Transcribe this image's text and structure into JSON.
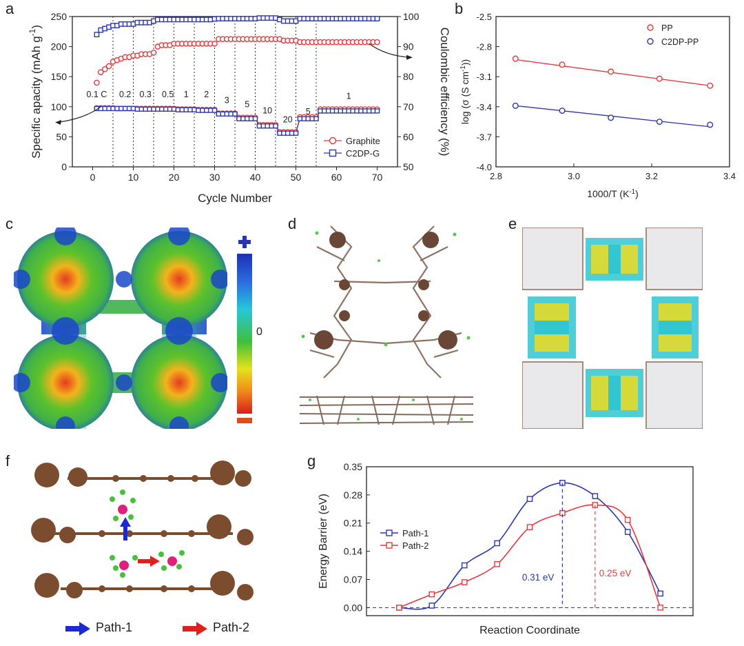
{
  "panels": {
    "a": "a",
    "b": "b",
    "c": "c",
    "d": "d",
    "e": "e",
    "f": "f",
    "g": "g"
  },
  "chart_data": [
    {
      "id": "a",
      "type": "scatter",
      "title": "",
      "xlabel": "Cycle Number",
      "ylabel": "Specific apacity (mAh g-1)",
      "ylabel_parts": [
        "Specific apacity (mAh g",
        "-1",
        ")"
      ],
      "y2label": "Coulombic efficiency (%)",
      "xlim": [
        -5,
        75
      ],
      "ylim": [
        0,
        250
      ],
      "y2lim": [
        50,
        100
      ],
      "xticks": [
        0,
        10,
        20,
        30,
        40,
        50,
        60,
        70
      ],
      "yticks": [
        0,
        50,
        100,
        150,
        200,
        250
      ],
      "y2ticks": [
        50,
        60,
        70,
        80,
        90,
        100
      ],
      "rate_labels": [
        {
          "x": 1,
          "text": "0.1 C"
        },
        {
          "x": 8,
          "text": "0.2"
        },
        {
          "x": 13,
          "text": "0.3"
        },
        {
          "x": 18.5,
          "text": "0.5"
        },
        {
          "x": 23,
          "text": "1"
        },
        {
          "x": 28,
          "text": "2"
        },
        {
          "x": 33,
          "text": "3"
        },
        {
          "x": 38,
          "text": "5"
        },
        {
          "x": 43,
          "text": "10"
        },
        {
          "x": 48,
          "text": "20"
        },
        {
          "x": 53,
          "text": "5"
        },
        {
          "x": 63,
          "text": "1"
        }
      ],
      "rate_label_y": [
        116,
        116,
        116,
        116,
        116,
        116,
        106,
        99,
        89,
        74,
        87,
        113
      ],
      "dividers_x": [
        5,
        10,
        15,
        20,
        25,
        30,
        35,
        40,
        45,
        50,
        55
      ],
      "series": [
        {
          "name": "Graphite",
          "axis": "left",
          "color": "#e8373a",
          "marker": "circle",
          "segments": [
            {
              "from": 1,
              "to": 5,
              "value": 98
            },
            {
              "from": 6,
              "to": 10,
              "value": 97
            },
            {
              "from": 11,
              "to": 15,
              "value": 97
            },
            {
              "from": 16,
              "to": 20,
              "value": 97
            },
            {
              "from": 21,
              "to": 25,
              "value": 96
            },
            {
              "from": 26,
              "to": 30,
              "value": 95
            },
            {
              "from": 31,
              "to": 35,
              "value": 89
            },
            {
              "from": 36,
              "to": 40,
              "value": 82
            },
            {
              "from": 41,
              "to": 45,
              "value": 70
            },
            {
              "from": 46,
              "to": 50,
              "value": 58
            },
            {
              "from": 51,
              "to": 55,
              "value": 83
            },
            {
              "from": 56,
              "to": 70,
              "value": 96
            }
          ]
        },
        {
          "name": "C2DP-G",
          "axis": "left",
          "color": "#2a35b0",
          "marker": "square",
          "segments": [
            {
              "from": 1,
              "to": 5,
              "value": 97
            },
            {
              "from": 6,
              "to": 10,
              "value": 97
            },
            {
              "from": 11,
              "to": 15,
              "value": 96
            },
            {
              "from": 16,
              "to": 20,
              "value": 96
            },
            {
              "from": 21,
              "to": 25,
              "value": 95
            },
            {
              "from": 26,
              "to": 30,
              "value": 94
            },
            {
              "from": 31,
              "to": 35,
              "value": 88
            },
            {
              "from": 36,
              "to": 40,
              "value": 80
            },
            {
              "from": 41,
              "to": 45,
              "value": 68
            },
            {
              "from": 46,
              "to": 50,
              "value": 56
            },
            {
              "from": 51,
              "to": 55,
              "value": 80
            },
            {
              "from": 56,
              "to": 70,
              "value": 93
            }
          ]
        },
        {
          "name": "Graphite CE",
          "axis": "right",
          "color": "#e8373a",
          "marker": "circle",
          "legend": false,
          "x": [
            1,
            2,
            3,
            4,
            5,
            6,
            7,
            8,
            9,
            10,
            11,
            12,
            13,
            14,
            15,
            16,
            17,
            18,
            19,
            20,
            21,
            22,
            23,
            24,
            25,
            26,
            27,
            28,
            29,
            30,
            31,
            32,
            33,
            34,
            35,
            36,
            37,
            38,
            39,
            40,
            41,
            42,
            43,
            44,
            45,
            46,
            47,
            48,
            49,
            50,
            51,
            52,
            53,
            54,
            55,
            56,
            57,
            58,
            59,
            60,
            61,
            62,
            63,
            64,
            65,
            66,
            67,
            68,
            69,
            70
          ],
          "y": [
            78,
            81.5,
            82.5,
            83.5,
            85,
            85.5,
            86,
            86.5,
            86.5,
            87,
            87,
            87.5,
            87.5,
            87.5,
            88,
            90,
            90.5,
            90.5,
            90.5,
            91,
            91,
            91,
            91,
            91,
            91,
            91,
            91,
            91,
            91,
            91,
            92.5,
            92.5,
            92.5,
            92.5,
            92.5,
            92.5,
            92.5,
            92.5,
            92.5,
            92.5,
            92.5,
            92.5,
            92.5,
            92.5,
            92.5,
            92.5,
            92,
            92,
            92,
            92,
            91.5,
            91.5,
            91.5,
            91.5,
            91.5,
            91.5,
            91.5,
            91.5,
            91.5,
            91.5,
            91.5,
            91.5,
            91.5,
            91.5,
            91.5,
            91.5,
            91.5,
            91.5,
            91.5,
            91.5
          ]
        },
        {
          "name": "C2DP-G CE",
          "axis": "right",
          "color": "#2a35b0",
          "marker": "square",
          "legend": false,
          "x": [
            1,
            2,
            3,
            4,
            5,
            6,
            7,
            8,
            9,
            10,
            11,
            12,
            13,
            14,
            15,
            16,
            17,
            18,
            19,
            20,
            21,
            22,
            23,
            24,
            25,
            26,
            27,
            28,
            29,
            30,
            31,
            32,
            33,
            34,
            35,
            36,
            37,
            38,
            39,
            40,
            41,
            42,
            43,
            44,
            45,
            46,
            47,
            48,
            49,
            50,
            51,
            52,
            53,
            54,
            55,
            56,
            57,
            58,
            59,
            60,
            61,
            62,
            63,
            64,
            65,
            66,
            67,
            68,
            69,
            70
          ],
          "y": [
            94,
            95.5,
            96,
            96.5,
            97,
            97,
            97.5,
            97.5,
            97.5,
            97.5,
            98,
            98,
            98,
            98,
            98.5,
            99,
            99,
            99,
            99,
            99,
            99,
            99,
            99,
            99,
            99,
            99,
            99,
            99,
            99,
            99.2,
            99.3,
            99.3,
            99.3,
            99.3,
            99.3,
            99.3,
            99.3,
            99.3,
            99.3,
            99.3,
            99.5,
            99.5,
            99.5,
            99.5,
            99.5,
            99,
            98.5,
            98.5,
            98.5,
            98.5,
            99.3,
            99.3,
            99.3,
            99.3,
            99.3,
            99.3,
            99.3,
            99.3,
            99.3,
            99.3,
            99.3,
            99.3,
            99.3,
            99.3,
            99.3,
            99.3,
            99.3,
            99.3,
            99.3,
            99.3
          ]
        }
      ],
      "legend": [
        "Graphite",
        "C2DP-G"
      ],
      "legend_position": "bottom-right"
    },
    {
      "id": "b",
      "type": "scatter",
      "xlabel": "1000/T (K-1)",
      "xlabel_parts": [
        "1000/T (K",
        "-1",
        ")"
      ],
      "ylabel": "log (σ (S cm-1))",
      "ylabel_parts": [
        "log (σ (S cm",
        "-1",
        "))"
      ],
      "xlim": [
        2.8,
        3.4
      ],
      "ylim": [
        -4.0,
        -2.5
      ],
      "xticks": [
        2.8,
        3.0,
        3.2,
        3.4
      ],
      "yticks": [
        -4.0,
        -3.7,
        -3.4,
        -3.1,
        -2.8,
        -2.5
      ],
      "series": [
        {
          "name": "PP",
          "color": "#e8373a",
          "x": [
            2.85,
            2.97,
            3.095,
            3.22,
            3.35
          ],
          "y": [
            -2.92,
            -2.98,
            -3.05,
            -3.12,
            -3.19
          ],
          "fit": [
            [
              2.85,
              -2.93
            ],
            [
              3.35,
              -3.19
            ]
          ]
        },
        {
          "name": "C2DP-PP",
          "color": "#2a35b0",
          "x": [
            2.85,
            2.97,
            3.095,
            3.22,
            3.35
          ],
          "y": [
            -3.39,
            -3.44,
            -3.51,
            -3.55,
            -3.58
          ],
          "fit": [
            [
              2.85,
              -3.39
            ],
            [
              3.35,
              -3.6
            ]
          ]
        }
      ],
      "legend": [
        "PP",
        "C2DP-PP"
      ],
      "legend_position": "top-right"
    },
    {
      "id": "g",
      "type": "line",
      "xlabel": "Reaction Coordinate",
      "ylabel": "Energy Barrier (eV)",
      "ylim": [
        -0.02,
        0.35
      ],
      "yticks": [
        0.0,
        0.07,
        0.14,
        0.21,
        0.28,
        0.35
      ],
      "ytick_labels": [
        "0.00",
        "0.07",
        "0.14",
        "0.21",
        "0.28",
        "0.35"
      ],
      "xlim": [
        0,
        10
      ],
      "series": [
        {
          "name": "Path-1",
          "color": "#2a35b0",
          "x": [
            1,
            2,
            3,
            4,
            5,
            6,
            7,
            8,
            9
          ],
          "y": [
            0.0,
            0.005,
            0.105,
            0.16,
            0.27,
            0.31,
            0.277,
            0.188,
            0.035
          ]
        },
        {
          "name": "Path-2",
          "color": "#e8373a",
          "x": [
            1,
            2,
            3,
            4,
            5,
            6,
            7,
            8,
            9
          ],
          "y": [
            0.0,
            0.033,
            0.063,
            0.108,
            0.2,
            0.235,
            0.255,
            0.218,
            0.0
          ]
        }
      ],
      "annotations": [
        {
          "text": "0.31 eV",
          "x": 6,
          "y": 0.31,
          "color": "#2a35b0"
        },
        {
          "text": "0.25 eV",
          "x": 7,
          "y": 0.255,
          "color": "#e8373a"
        }
      ],
      "legend": [
        "Path-1",
        "Path-2"
      ],
      "legend_position": "left"
    }
  ],
  "colorbar_c": {
    "top_symbol": "plus",
    "mid_label": "0",
    "bottom_symbol": "minus"
  },
  "panel_f": {
    "legend": [
      {
        "label": "Path-1",
        "color": "#1c2bd0"
      },
      {
        "label": "Path-2",
        "color": "#e0201a"
      }
    ]
  }
}
